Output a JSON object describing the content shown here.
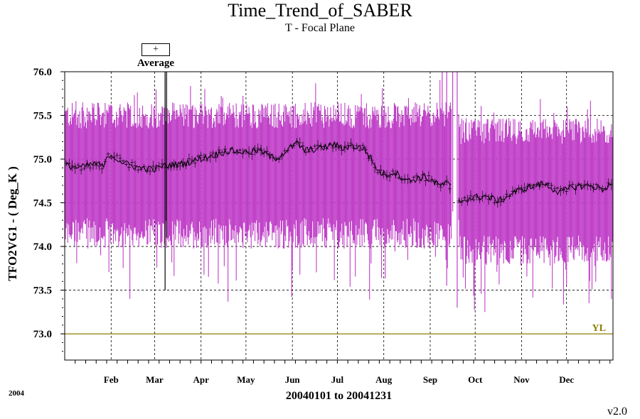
{
  "chart_data": {
    "type": "line",
    "title": "Time_Trend_of_SABER",
    "subtitle": "T - Focal Plane",
    "ylabel": "TFO2VG1  - ( Deg_K )",
    "xlabel": "20040101 to 20041231",
    "year_label": "2004",
    "version": "v2.0",
    "legend": {
      "symbol": "+",
      "label": "Average"
    },
    "ylim": [
      72.7,
      76.0
    ],
    "yticks": [
      "73.0",
      "73.5",
      "74.0",
      "74.5",
      "75.0",
      "75.5",
      "76.0"
    ],
    "ytick_values": [
      73.0,
      73.5,
      74.0,
      74.5,
      75.0,
      75.5,
      76.0
    ],
    "xlim_days": [
      0,
      366
    ],
    "xtick_labels": [
      "Feb",
      "Mar",
      "Apr",
      "May",
      "Jun",
      "Jul",
      "Aug",
      "Sep",
      "Oct",
      "Nov",
      "Dec"
    ],
    "xtick_days": [
      31,
      60,
      91,
      121,
      152,
      182,
      213,
      244,
      274,
      305,
      335
    ],
    "reference_line": {
      "label": "YL",
      "value": 73.0,
      "color": "#8b7d00"
    },
    "colors": {
      "range_bars": "#c040c8",
      "average": "#000000",
      "grid": "#000000"
    },
    "series": [
      {
        "name": "Average",
        "x_knots": [
          0,
          10,
          20,
          26,
          30,
          40,
          50,
          60,
          65,
          80,
          90,
          100,
          110,
          120,
          130,
          140,
          150,
          155,
          160,
          170,
          180,
          185,
          190,
          200,
          210,
          215,
          220,
          230,
          240,
          250,
          255,
          258,
          264,
          270,
          280,
          290,
          300,
          310,
          320,
          330,
          340,
          350,
          360,
          366
        ],
        "y_knots": [
          74.93,
          74.9,
          74.95,
          74.92,
          75.06,
          74.95,
          74.9,
          74.88,
          74.92,
          74.95,
          75.0,
          75.05,
          75.1,
          75.08,
          75.1,
          75.0,
          75.12,
          75.18,
          75.1,
          75.12,
          75.17,
          75.12,
          75.15,
          75.12,
          74.85,
          74.82,
          74.85,
          74.75,
          74.8,
          74.7,
          74.72,
          74.68,
          74.52,
          74.55,
          74.58,
          74.52,
          74.62,
          74.68,
          74.72,
          74.62,
          74.68,
          74.7,
          74.65,
          74.75
        ],
        "range_low_typical": 74.05,
        "range_high_typical": 75.55
      }
    ]
  }
}
